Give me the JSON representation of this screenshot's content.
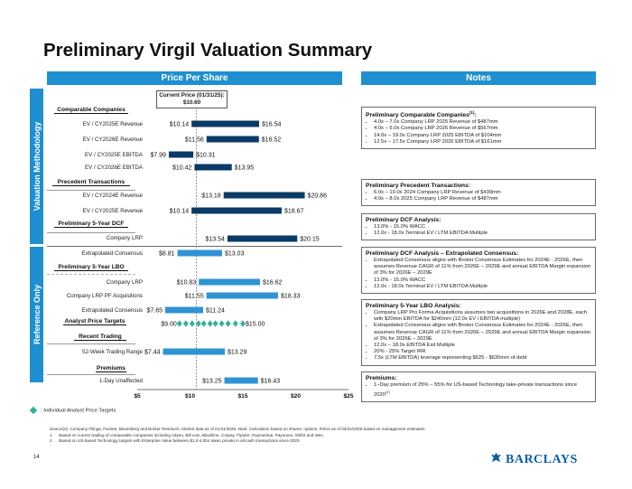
{
  "title": "Preliminary Virgil Valuation Summary",
  "headers": {
    "price_per_share": "Price Per Share",
    "notes": "Notes"
  },
  "vertical_labels": {
    "valuation": "Valuation Methodology",
    "reference": "Reference Only"
  },
  "current_price": {
    "label": "Current Price (01/31/25):",
    "value": "$10.60"
  },
  "sections": {
    "comparable": "Comparable Companies",
    "precedent": "Precedent Transactions",
    "prelim_dcf": "Preliminary 5-Year DCF",
    "prelim_lbo": "Preliminary 5-Year LBO",
    "analyst": "Analyst Price Targets",
    "recent": "Recent Trading",
    "premiums": "Premiums"
  },
  "chart_data": {
    "type": "bar",
    "orientation": "horizontal-floating-range",
    "xlim": [
      5,
      25
    ],
    "xticks": [
      "$5",
      "$10",
      "$15",
      "$20",
      "$25"
    ],
    "reference_line": {
      "label": "Current Price (01/31/25):",
      "value": 10.6
    },
    "rows": [
      {
        "label": "EV / CY2025E Revenue",
        "low": 10.14,
        "high": 16.54,
        "low_label": "$10.14",
        "high_label": "$16.54",
        "group": "valuation"
      },
      {
        "label": "EV / CY2026E Revenue",
        "low": 11.56,
        "high": 16.52,
        "low_label": "$11.56",
        "high_label": "$16.52",
        "group": "valuation"
      },
      {
        "label": "EV / CY2025E EBITDA",
        "low": 7.99,
        "high": 10.31,
        "low_label": "$7.99",
        "high_label": "$10.31",
        "group": "valuation"
      },
      {
        "label": "EV / CY2026E EBITDA",
        "low": 10.42,
        "high": 13.95,
        "low_label": "$10.42",
        "high_label": "$13.95",
        "group": "valuation"
      },
      {
        "label": "EV / CY2024E Revenue",
        "low": 13.18,
        "high": 20.86,
        "low_label": "$13.18",
        "high_label": "$20.86",
        "group": "valuation"
      },
      {
        "label": "EV / CY2025E Revenue",
        "low": 10.14,
        "high": 18.67,
        "low_label": "$10.14",
        "high_label": "$18.67",
        "group": "valuation"
      },
      {
        "label": "Company LRP",
        "low": 13.54,
        "high": 20.15,
        "low_label": "$13.54",
        "high_label": "$20.15",
        "group": "valuation"
      },
      {
        "label": "Extrapolated Consensus",
        "low": 8.81,
        "high": 13.03,
        "low_label": "$8.81",
        "high_label": "$13.03",
        "group": "reference"
      },
      {
        "label": "Company LRP",
        "low": 10.83,
        "high": 16.62,
        "low_label": "$10.83",
        "high_label": "$16.62",
        "group": "reference"
      },
      {
        "label": "Company LRP PF Acquisitions",
        "low": 11.55,
        "high": 18.33,
        "low_label": "$11.55",
        "high_label": "$18.33",
        "group": "reference"
      },
      {
        "label": "Extrapolated Consensus",
        "low": 7.65,
        "high": 11.24,
        "low_label": "$7.65",
        "high_label": "$11.24",
        "group": "reference"
      },
      {
        "label": "",
        "low": 9.0,
        "high": 15.0,
        "low_label": "$9.00",
        "high_label": "$15.00",
        "group": "analyst",
        "points": [
          9.0,
          9.6,
          10.2,
          10.8,
          11.3,
          11.9,
          12.4,
          13.0,
          13.6,
          14.3,
          15.0
        ]
      },
      {
        "label": "52-Week Trading Range",
        "low": 7.44,
        "high": 13.29,
        "low_label": "$7.44",
        "high_label": "$13.29",
        "group": "reference"
      },
      {
        "label": "1-Day Unaffected",
        "low": 13.25,
        "high": 16.43,
        "low_label": "$13.25",
        "high_label": "$16.43",
        "group": "reference"
      }
    ],
    "colors": {
      "valuation": "#0a3a66",
      "reference": "#2f93d3",
      "analyst_point": "#35b09a",
      "reference_line": "#888888"
    },
    "legend": [
      "Individual Analyst Price Targets"
    ]
  },
  "notes": [
    {
      "title": "Preliminary Comparable Companies",
      "sup": "(1)",
      "title_suffix": ":",
      "bullets": [
        "4.0x – 7.0x Company LRP 2025 Revenue of $487mm",
        "4.0x – 6.0x Company LRP 2026 Revenue of $567mm",
        "14.0x – 19.0x Company LRP 2025 EBITDA of $104mm",
        "12.5x – 17.5x Company LRP 2026 EBITDA of $161mm"
      ]
    },
    {
      "title": "Preliminary Precedent Transactions",
      "sup": "",
      "title_suffix": ":",
      "bullets": [
        "6.0x – 10.0x 2024 Company LRP Revenue of $439mm",
        "4.0x – 8.0x 2025 Company LRP Revenue of $487mm"
      ]
    },
    {
      "title": "Preliminary DCF Analysis",
      "sup": "",
      "title_suffix": ":",
      "bullets": [
        "13.0% - 15.0% WACC",
        "12.0x - 18.0x Terminal EV / LTM EBITDA Multiple"
      ]
    },
    {
      "title": "Preliminary DCF Analysis – Extrapolated Consensus",
      "sup": "",
      "title_suffix": ":",
      "bullets": [
        "Extrapolated Consensus aligns with Broker Consensus Estimates for 2024E - 2026E, then assumes Revenue CAGR of 11% from 2026E – 2029E and annual EBITDA Margin expansion of 3% for 2026E – 2029E",
        "13.0% - 15.0% WACC",
        "12.0x - 18.0x Terminal EV / LTM EBITDA Multiple"
      ]
    },
    {
      "title": "Preliminary 5-Year LBO Analysis",
      "sup": "",
      "title_suffix": ":",
      "bullets": [
        "Company LRP Pro Forma Acquisitions assumes two acquisitions in 2026E and 2028E, each with $20mm EBITDA for $240mm (12.0x EV / EBITDA multiple)",
        "Extrapolated Consensus aligns with Broker Consensus Estimates for 2024E - 2026E, then assumes Revenue CAGR of 11% from 2026E – 2029E and annual EBITDA Margin expansion of 3% for 2026E – 2029E",
        "12.0x – 18.0x EBITDA Exit Multiple",
        "20% - 25% Target IRR",
        "7.5x (LTM EBITDA) leverage representing $625 - $630mm of debt"
      ]
    },
    {
      "title": "Premiums",
      "sup": "",
      "title_suffix": ":",
      "bullets": [
        "1–Day premium of 25% – 55% for US-based Technology take-private transactions since 2020"
      ],
      "bullet_sup": "(2)"
    }
  ],
  "legend_text": ": Individual Analyst Price Targets",
  "footnotes": {
    "source": "Source(s): Company Filings, Factset, Bloomberg and Broker Research. Market data as of 01/31/2025. Note: Calculation based on shares, options, RSUs as of 03/31/2025 based on management estimates.",
    "n1_num": "1",
    "n1": "Based on current trading of comparable companies including Adyen, Bill.com, Blackline, Corpay, Flywire, Paymentus, Payoneer, Shift4 and Wex.",
    "n2_num": "2",
    "n2": "Based on US-based Technology targets with Enterprise Value between $1.0-4.0bn taken private in all-cash transactions since 2020."
  },
  "page_number": "14",
  "logo_text": "BARCLAYS"
}
